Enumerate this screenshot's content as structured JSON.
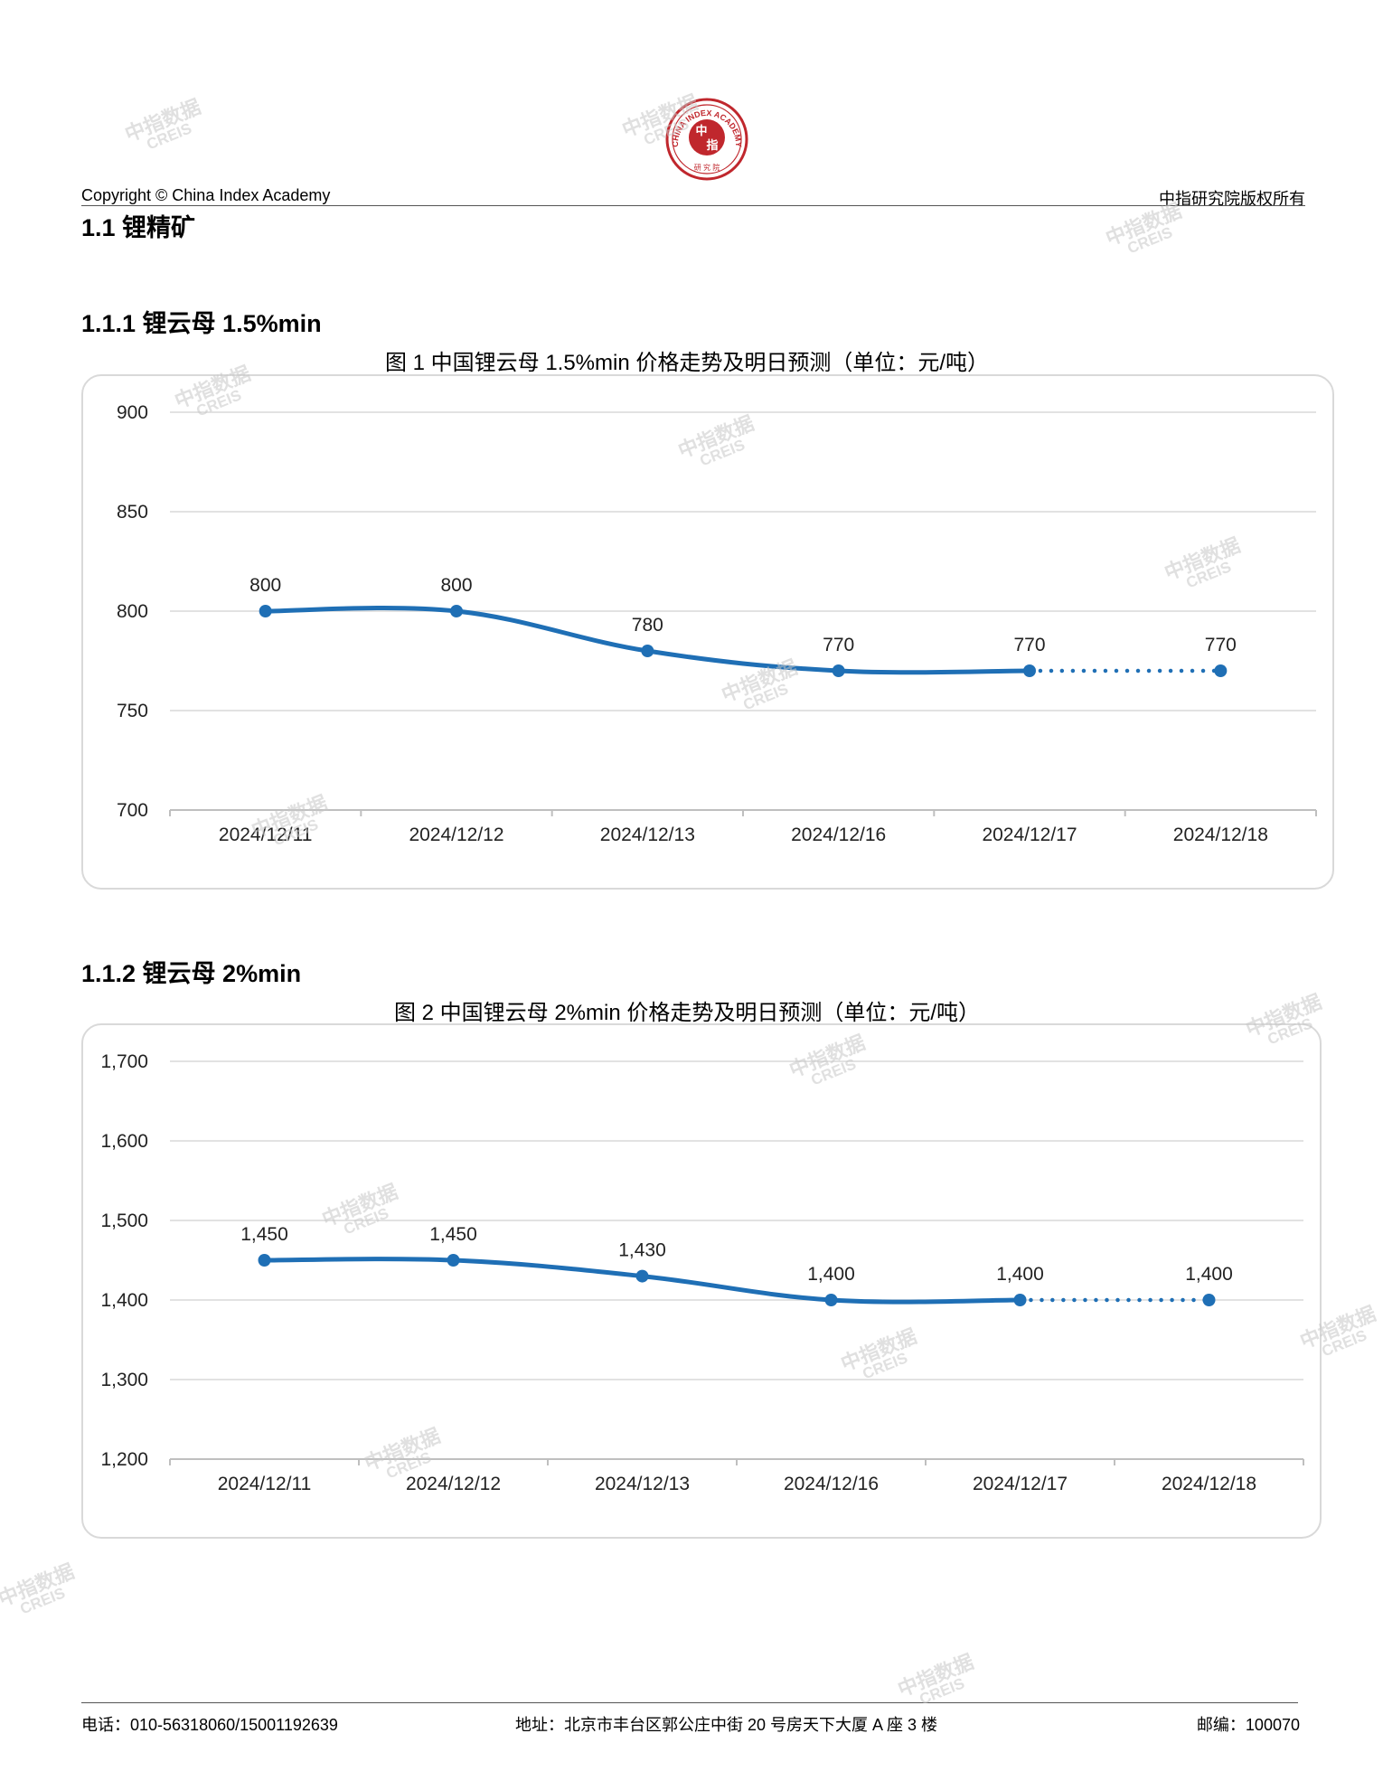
{
  "header": {
    "copyright": "Copyright © China Index Academy",
    "rights": "中指研究院版权所有",
    "seal_text": "CHINA INDEX ACADEMY",
    "seal_center_top": "中",
    "seal_center_bottom": "指",
    "seal_bottom": "研 究 院"
  },
  "watermark": {
    "cn": "中指数据",
    "en": "CREIS"
  },
  "sections": {
    "s1_title": "1.1 锂精矿",
    "s11_title": "1.1.1 锂云母 1.5%min",
    "s12_title": "1.1.2 锂云母 2%min"
  },
  "chart_data": [
    {
      "type": "line",
      "title": "图 1 中国锂云母 1.5%min 价格走势及明日预测（单位：元/吨）",
      "categories": [
        "2024/12/11",
        "2024/12/12",
        "2024/12/13",
        "2024/12/16",
        "2024/12/17",
        "2024/12/18"
      ],
      "values": [
        800,
        800,
        780,
        770,
        770,
        770
      ],
      "value_labels": [
        "800",
        "800",
        "780",
        "770",
        "770",
        "770"
      ],
      "ylim": [
        700,
        900
      ],
      "yticks": [
        900,
        850,
        800,
        750,
        700
      ],
      "ytick_labels": [
        "900",
        "850",
        "800",
        "750",
        "700"
      ],
      "forecast_from_index": 4,
      "grid": true,
      "color": "#1f6fb5"
    },
    {
      "type": "line",
      "title": "图 2 中国锂云母 2%min 价格走势及明日预测（单位：元/吨）",
      "categories": [
        "2024/12/11",
        "2024/12/12",
        "2024/12/13",
        "2024/12/16",
        "2024/12/17",
        "2024/12/18"
      ],
      "values": [
        1450,
        1450,
        1430,
        1400,
        1400,
        1400
      ],
      "value_labels": [
        "1,450",
        "1,450",
        "1,430",
        "1,400",
        "1,400",
        "1,400"
      ],
      "ylim": [
        1200,
        1700
      ],
      "yticks": [
        1700,
        1600,
        1500,
        1400,
        1300,
        1200
      ],
      "ytick_labels": [
        "1,700",
        "1,600",
        "1,500",
        "1,400",
        "1,300",
        "1,200"
      ],
      "forecast_from_index": 4,
      "grid": true,
      "color": "#1f6fb5"
    }
  ],
  "footer": {
    "phone": "电话：010-56318060/15001192639",
    "address": "地址：北京市丰台区郭公庄中街 20 号房天下大厦 A 座 3 楼",
    "postcode": "邮编：100070"
  }
}
